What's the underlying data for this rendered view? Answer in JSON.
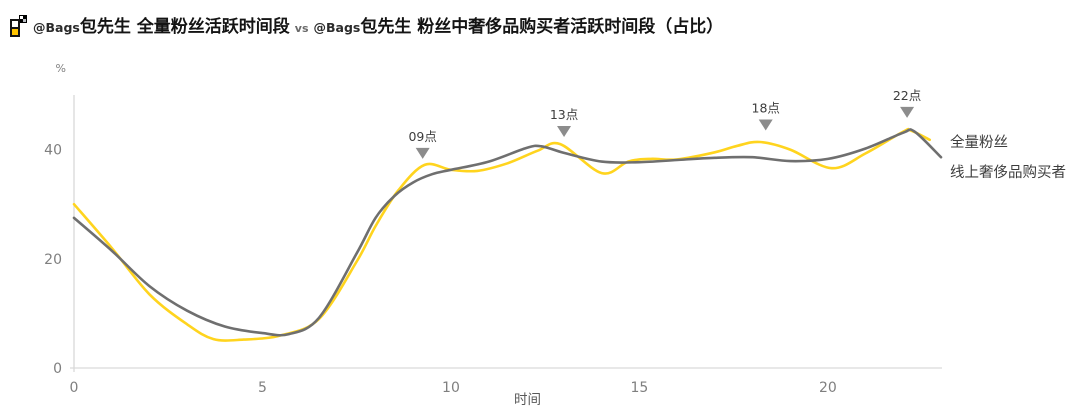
{
  "title": {
    "handle1": "@Bags",
    "part1": "包先生 全量粉丝活跃时间段",
    "vs": "vs",
    "handle2": "@Bags",
    "part2": "包先生 粉丝中奢侈品购买者活跃时间段（占比）"
  },
  "legend": {
    "series1": "全量粉丝",
    "series2": "线上奢侈品购买者"
  },
  "colors": {
    "gray_line": "#6F6F6F",
    "yellow_line": "#FFD41E",
    "axis": "#D9D9D9",
    "tick_text": "#7F7F7F",
    "axis_title_text": "#595959",
    "annotation_marker": "#8C8C8C",
    "annotation_text": "#3D3D3D"
  },
  "chart_data": {
    "type": "line",
    "x_axis_label": "时间",
    "y_unit": "%",
    "xlim": [
      0,
      23
    ],
    "ylim": [
      0,
      50
    ],
    "x_ticks": [
      0,
      5,
      10,
      15,
      20
    ],
    "y_ticks": [
      0,
      20,
      40
    ],
    "grid": false,
    "legend_position": "right-end-of-lines",
    "annotations": [
      {
        "label": "09点",
        "x": 9.25,
        "tip_value": 38.3
      },
      {
        "label": "13点",
        "x": 13.0,
        "tip_value": 42.3
      },
      {
        "label": "18点",
        "x": 18.35,
        "tip_value": 43.5
      },
      {
        "label": "22点",
        "x": 22.1,
        "tip_value": 45.8
      }
    ],
    "series": [
      {
        "name": "线上奢侈品购买者",
        "color": "#FFD41E",
        "points": [
          [
            0,
            30
          ],
          [
            1,
            22
          ],
          [
            2,
            13.5
          ],
          [
            3,
            8
          ],
          [
            3.7,
            5.3
          ],
          [
            4.5,
            5.2
          ],
          [
            5.5,
            6
          ],
          [
            6.5,
            9
          ],
          [
            7.5,
            19.5
          ],
          [
            8,
            26
          ],
          [
            8.6,
            32.5
          ],
          [
            9.3,
            37.2
          ],
          [
            10,
            36.3
          ],
          [
            10.7,
            36.1
          ],
          [
            11.5,
            37.5
          ],
          [
            12.3,
            39.8
          ],
          [
            12.9,
            41
          ],
          [
            14,
            35.7
          ],
          [
            14.7,
            37.8
          ],
          [
            15.3,
            38.3
          ],
          [
            16,
            38.2
          ],
          [
            17,
            39.5
          ],
          [
            17.6,
            40.7
          ],
          [
            18.2,
            41.4
          ],
          [
            19,
            40
          ],
          [
            20.1,
            36.6
          ],
          [
            21,
            39.3
          ],
          [
            22,
            43.3
          ],
          [
            22.2,
            43.5
          ],
          [
            22.7,
            41.8
          ]
        ]
      },
      {
        "name": "全量粉丝",
        "color": "#6F6F6F",
        "points": [
          [
            0,
            27.5
          ],
          [
            1,
            21.5
          ],
          [
            2,
            15
          ],
          [
            3,
            10.5
          ],
          [
            4,
            7.6
          ],
          [
            5,
            6.4
          ],
          [
            5.7,
            6.2
          ],
          [
            6.5,
            9.2
          ],
          [
            7.5,
            21
          ],
          [
            8,
            27.5
          ],
          [
            8.5,
            31.5
          ],
          [
            9,
            34
          ],
          [
            9.5,
            35.5
          ],
          [
            10,
            36.3
          ],
          [
            11,
            37.8
          ],
          [
            12,
            40.3
          ],
          [
            12.4,
            40.6
          ],
          [
            13,
            39.4
          ],
          [
            14,
            37.8
          ],
          [
            15,
            37.7
          ],
          [
            16,
            38.1
          ],
          [
            17,
            38.5
          ],
          [
            18,
            38.6
          ],
          [
            19,
            37.9
          ],
          [
            20,
            38.3
          ],
          [
            21,
            40.2
          ],
          [
            22,
            43.1
          ],
          [
            22.3,
            43.3
          ],
          [
            23,
            38.6
          ]
        ]
      }
    ]
  }
}
